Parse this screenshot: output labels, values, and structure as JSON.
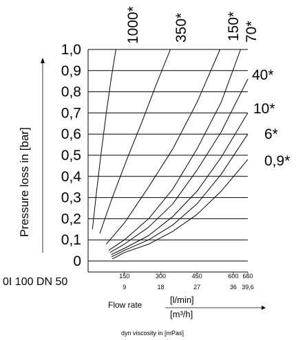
{
  "chart_data": {
    "type": "line",
    "ylabel": "Pressure loss in [bar]",
    "xlabel": "Flow rate",
    "x_units": [
      "[l/min]",
      "[m³/h]"
    ],
    "footnote": "dyn viscosity in [mPas]",
    "side_label": "0I 100 DN 50",
    "yticks": [
      "1,0",
      "0,9",
      "0,8",
      "0,7",
      "0,6",
      "0,5",
      "0,4",
      "0,3",
      "0,2",
      "0,1",
      "0"
    ],
    "ytick_values": [
      1.0,
      0.9,
      0.8,
      0.7,
      0.6,
      0.5,
      0.4,
      0.3,
      0.2,
      0.1,
      0.0
    ],
    "xticks_lmin": [
      "150",
      "300",
      "450",
      "600",
      "660"
    ],
    "xticks_m3h": [
      "9",
      "18",
      "27",
      "36",
      "39,6"
    ],
    "xtick_values": [
      150,
      300,
      450,
      600,
      660
    ],
    "xlim": [
      0,
      660
    ],
    "ylim": [
      0,
      1.0
    ],
    "grid": true,
    "series": [
      {
        "name": "1000*",
        "x": [
          18,
          35,
          55,
          75,
          95,
          115
        ],
        "y": [
          0.15,
          0.33,
          0.52,
          0.7,
          0.86,
          1.0
        ]
      },
      {
        "name": "350*",
        "x": [
          48,
          100,
          160,
          220,
          280,
          340
        ],
        "y": [
          0.13,
          0.3,
          0.48,
          0.65,
          0.83,
          1.0
        ]
      },
      {
        "name": "150*",
        "x": [
          75,
          150,
          250,
          350,
          450,
          545
        ],
        "y": [
          0.08,
          0.18,
          0.35,
          0.53,
          0.75,
          1.0
        ]
      },
      {
        "name": "70*",
        "x": [
          85,
          150,
          250,
          350,
          450,
          550,
          630
        ],
        "y": [
          0.05,
          0.1,
          0.2,
          0.34,
          0.53,
          0.75,
          1.0
        ]
      },
      {
        "name": "40*",
        "x": [
          90,
          150,
          250,
          350,
          450,
          550,
          660
        ],
        "y": [
          0.04,
          0.08,
          0.16,
          0.27,
          0.43,
          0.61,
          0.86
        ]
      },
      {
        "name": "10*",
        "x": [
          95,
          150,
          250,
          350,
          450,
          550,
          660
        ],
        "y": [
          0.03,
          0.06,
          0.12,
          0.21,
          0.33,
          0.49,
          0.7
        ]
      },
      {
        "name": "6*",
        "x": [
          97,
          150,
          250,
          350,
          450,
          550,
          660
        ],
        "y": [
          0.02,
          0.05,
          0.1,
          0.17,
          0.27,
          0.41,
          0.6
        ]
      },
      {
        "name": "0,9*",
        "x": [
          100,
          150,
          250,
          350,
          450,
          550,
          660
        ],
        "y": [
          0.01,
          0.04,
          0.08,
          0.14,
          0.22,
          0.33,
          0.48
        ]
      }
    ]
  }
}
